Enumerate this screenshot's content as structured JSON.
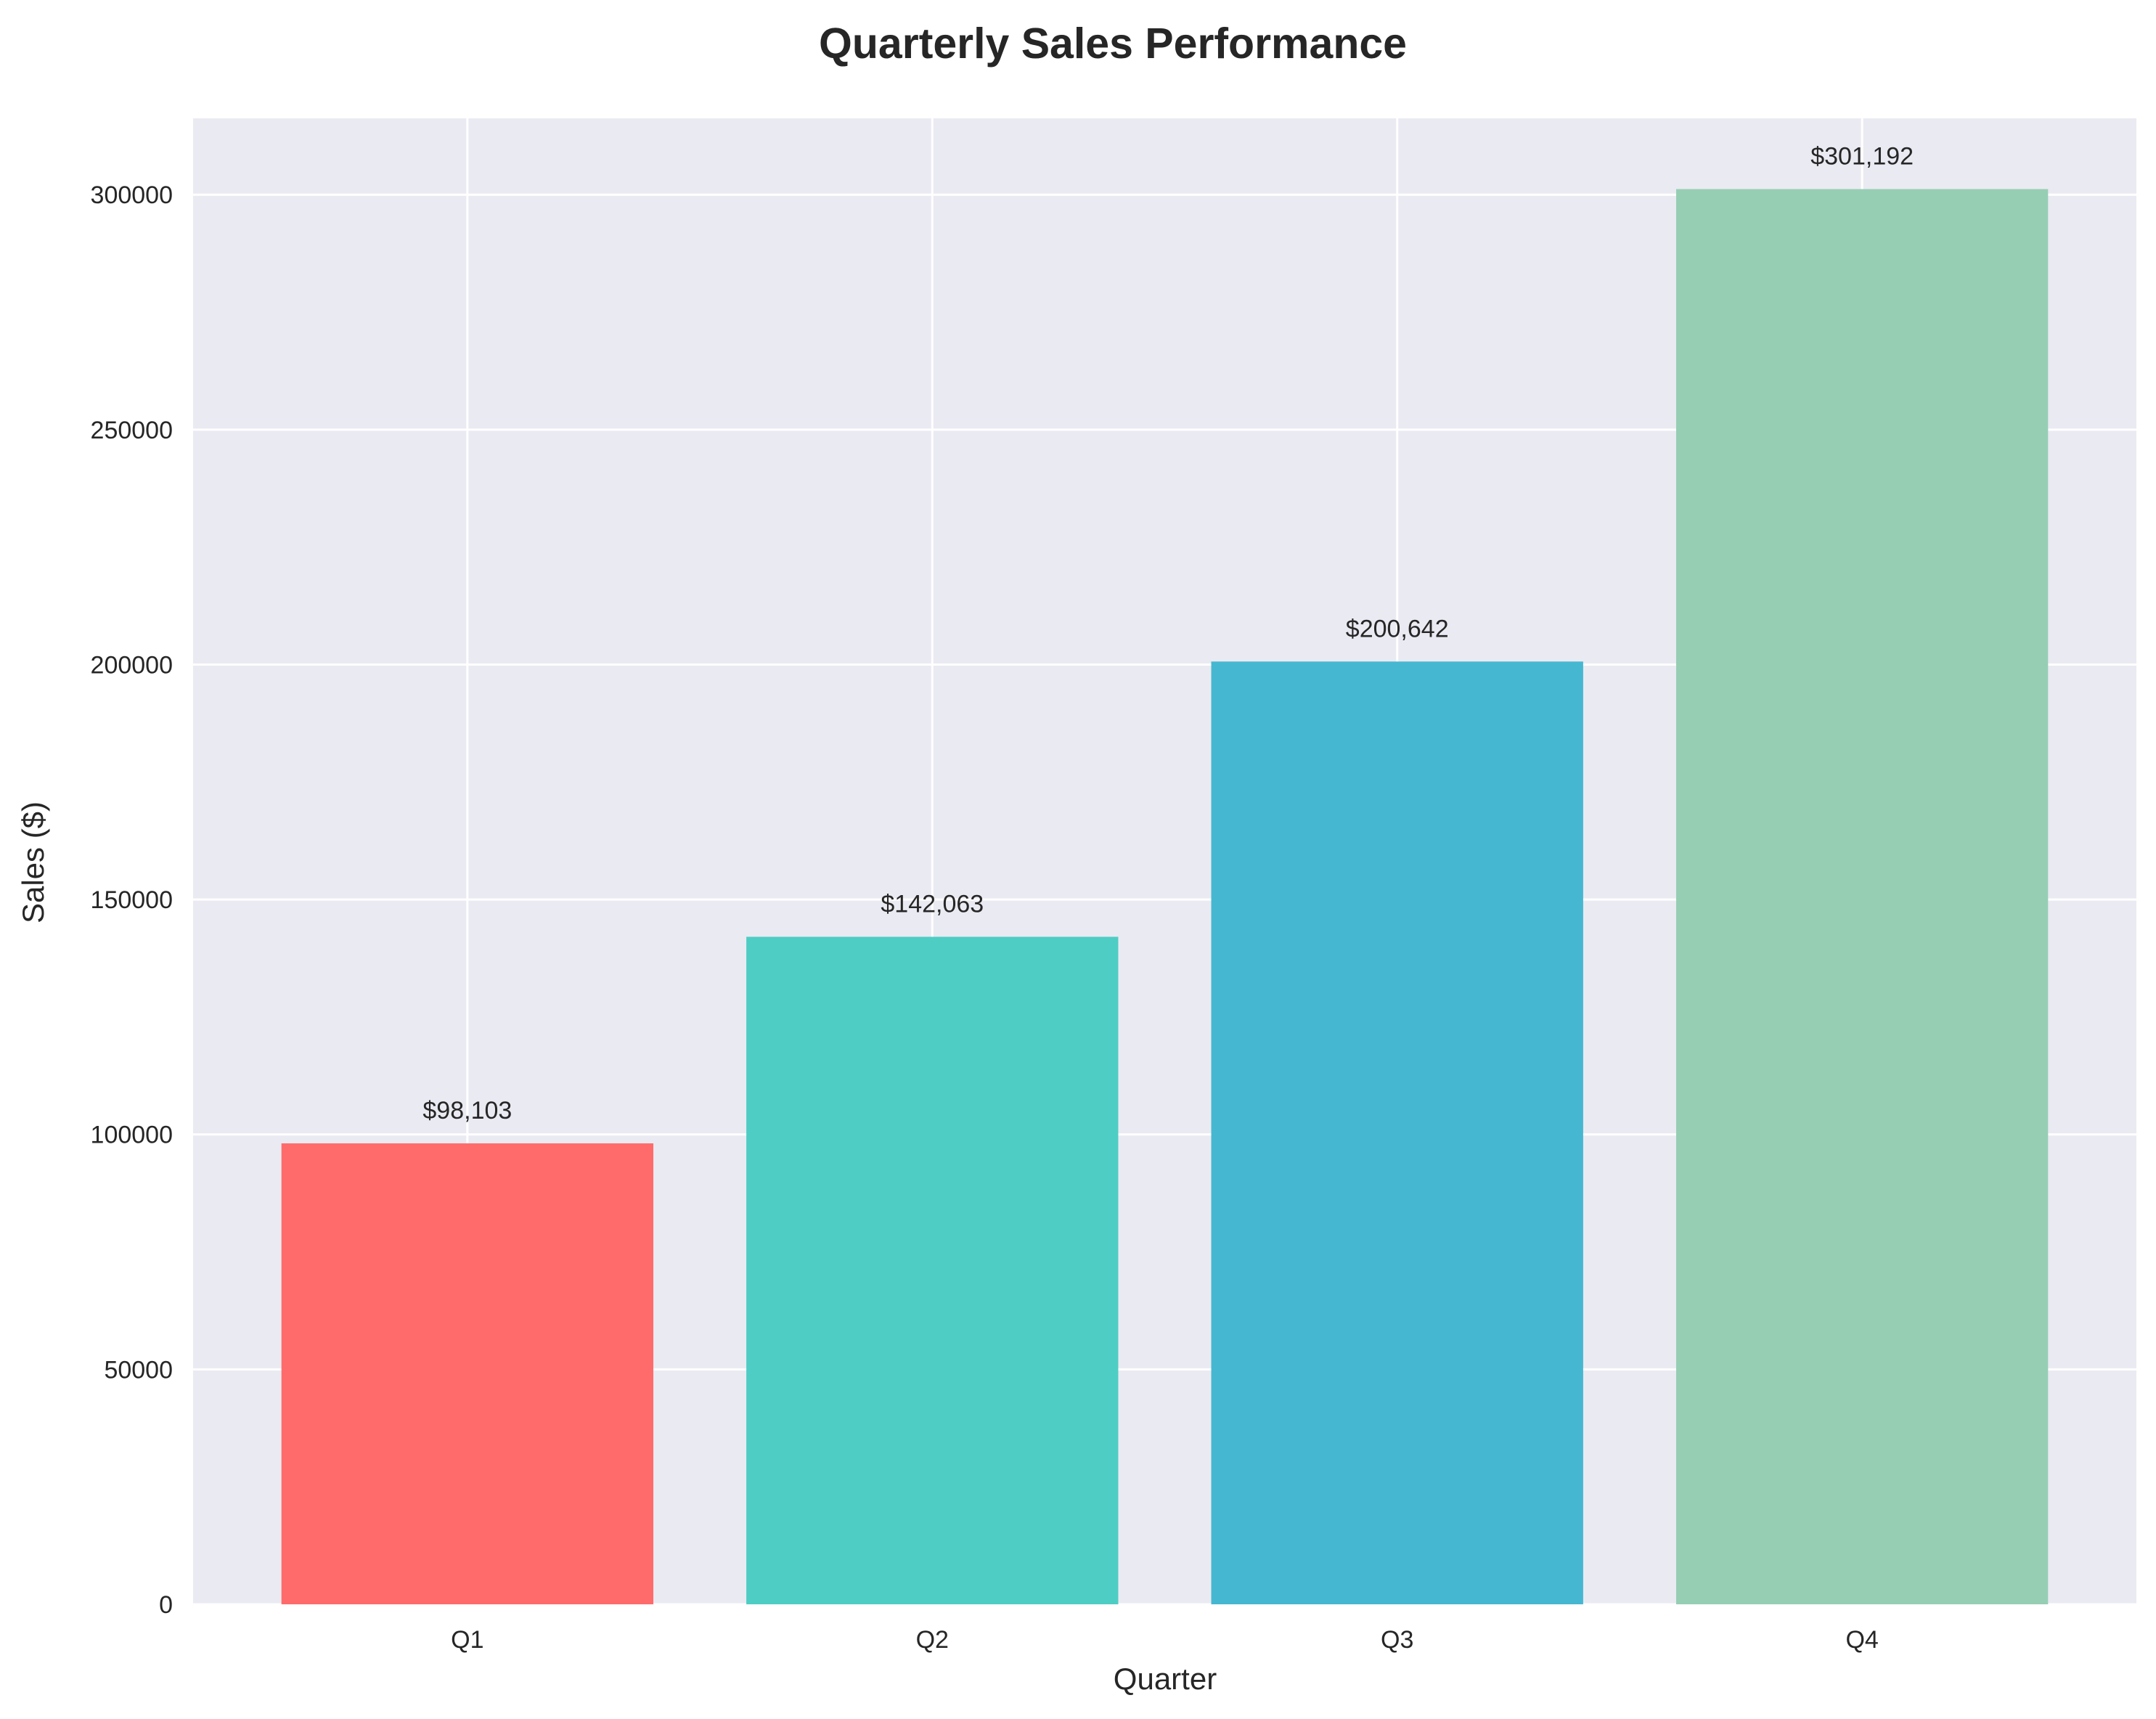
{
  "chart_data": {
    "type": "bar",
    "title": "Quarterly Sales Performance",
    "xlabel": "Quarter",
    "ylabel": "Sales ($)",
    "categories": [
      "Q1",
      "Q2",
      "Q3",
      "Q4"
    ],
    "values": [
      98103,
      142063,
      200642,
      301192
    ],
    "value_labels": [
      "$98,103",
      "$142,063",
      "$200,642",
      "$301,192"
    ],
    "bar_colors": [
      "#ff6b6b",
      "#4ecdc4",
      "#45b7d1",
      "#96ceb4"
    ],
    "ylim": [
      0,
      316251
    ],
    "yticks": [
      0,
      50000,
      100000,
      150000,
      200000,
      250000,
      300000
    ],
    "ytick_labels": [
      "0",
      "50000",
      "100000",
      "150000",
      "200000",
      "250000",
      "300000"
    ],
    "grid": true,
    "background_color": "#eaeaf2",
    "grid_color": "#ffffff"
  }
}
